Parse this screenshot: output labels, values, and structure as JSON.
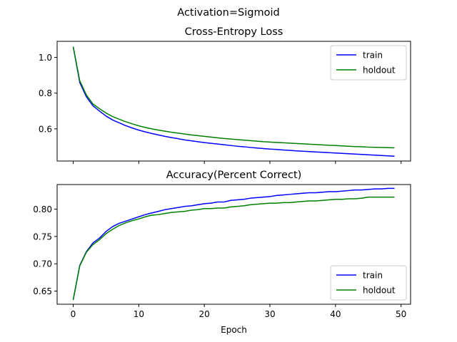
{
  "figure": {
    "suptitle": "Activation=Sigmoid"
  },
  "chart_data": [
    {
      "type": "line",
      "title": "Cross-Entropy Loss",
      "xlabel": "",
      "ylabel": "",
      "xlim": [
        -2.45,
        51.45
      ],
      "ylim": [
        0.42,
        1.09
      ],
      "xticks": [
        0,
        10,
        20,
        30,
        40,
        50
      ],
      "xtick_labels_visible": false,
      "yticks": [
        0.6,
        0.8,
        1.0
      ],
      "ytick_labels": [
        "0.6",
        "0.8",
        "1.0"
      ],
      "legend": {
        "position": "top-right"
      },
      "grid": false,
      "x": [
        0,
        1,
        2,
        3,
        4,
        5,
        6,
        7,
        8,
        9,
        10,
        11,
        12,
        13,
        14,
        15,
        16,
        17,
        18,
        19,
        20,
        21,
        22,
        23,
        24,
        25,
        26,
        27,
        28,
        29,
        30,
        31,
        32,
        33,
        34,
        35,
        36,
        37,
        38,
        39,
        40,
        41,
        42,
        43,
        44,
        45,
        46,
        47,
        48,
        49
      ],
      "series": [
        {
          "name": "train",
          "color": "#0000ff",
          "values": [
            1.06,
            0.86,
            0.78,
            0.73,
            0.7,
            0.672,
            0.65,
            0.634,
            0.618,
            0.605,
            0.593,
            0.583,
            0.574,
            0.566,
            0.558,
            0.551,
            0.545,
            0.538,
            0.533,
            0.528,
            0.523,
            0.519,
            0.515,
            0.511,
            0.507,
            0.503,
            0.5,
            0.496,
            0.493,
            0.49,
            0.487,
            0.485,
            0.482,
            0.48,
            0.477,
            0.475,
            0.473,
            0.471,
            0.469,
            0.467,
            0.465,
            0.463,
            0.461,
            0.459,
            0.457,
            0.455,
            0.453,
            0.451,
            0.449,
            0.447
          ]
        },
        {
          "name": "holdout",
          "color": "#008000",
          "values": [
            1.06,
            0.87,
            0.79,
            0.74,
            0.713,
            0.689,
            0.669,
            0.654,
            0.64,
            0.628,
            0.617,
            0.608,
            0.6,
            0.593,
            0.587,
            0.581,
            0.576,
            0.571,
            0.566,
            0.562,
            0.558,
            0.554,
            0.55,
            0.546,
            0.543,
            0.54,
            0.537,
            0.534,
            0.531,
            0.528,
            0.526,
            0.524,
            0.522,
            0.52,
            0.518,
            0.516,
            0.514,
            0.512,
            0.51,
            0.508,
            0.507,
            0.505,
            0.503,
            0.501,
            0.5,
            0.498,
            0.497,
            0.496,
            0.495,
            0.494
          ]
        }
      ]
    },
    {
      "type": "line",
      "title": "Accuracy(Percent Correct)",
      "xlabel": "Epoch",
      "ylabel": "",
      "xlim": [
        -2.45,
        51.45
      ],
      "ylim": [
        0.626,
        0.845
      ],
      "xticks": [
        0,
        10,
        20,
        30,
        40,
        50
      ],
      "xtick_labels": [
        "0",
        "10",
        "20",
        "30",
        "40",
        "50"
      ],
      "yticks": [
        0.65,
        0.7,
        0.75,
        0.8
      ],
      "ytick_labels": [
        "0.65",
        "0.70",
        "0.75",
        "0.80"
      ],
      "legend": {
        "position": "bottom-right"
      },
      "grid": false,
      "x": [
        0,
        1,
        2,
        3,
        4,
        5,
        6,
        7,
        8,
        9,
        10,
        11,
        12,
        13,
        14,
        15,
        16,
        17,
        18,
        19,
        20,
        21,
        22,
        23,
        24,
        25,
        26,
        27,
        28,
        29,
        30,
        31,
        32,
        33,
        34,
        35,
        36,
        37,
        38,
        39,
        40,
        41,
        42,
        43,
        44,
        45,
        46,
        47,
        48,
        49
      ],
      "series": [
        {
          "name": "train",
          "color": "#0000ff",
          "values": [
            0.634,
            0.697,
            0.722,
            0.738,
            0.747,
            0.759,
            0.768,
            0.774,
            0.778,
            0.782,
            0.786,
            0.79,
            0.793,
            0.796,
            0.799,
            0.801,
            0.803,
            0.805,
            0.806,
            0.808,
            0.81,
            0.811,
            0.813,
            0.813,
            0.816,
            0.817,
            0.818,
            0.82,
            0.821,
            0.822,
            0.823,
            0.825,
            0.826,
            0.827,
            0.828,
            0.829,
            0.83,
            0.83,
            0.831,
            0.832,
            0.832,
            0.833,
            0.834,
            0.835,
            0.835,
            0.836,
            0.837,
            0.837,
            0.838,
            0.838
          ]
        },
        {
          "name": "holdout",
          "color": "#008000",
          "values": [
            0.634,
            0.696,
            0.721,
            0.735,
            0.744,
            0.755,
            0.763,
            0.77,
            0.775,
            0.779,
            0.782,
            0.786,
            0.789,
            0.79,
            0.792,
            0.794,
            0.795,
            0.796,
            0.798,
            0.799,
            0.801,
            0.801,
            0.802,
            0.802,
            0.804,
            0.805,
            0.806,
            0.808,
            0.809,
            0.81,
            0.811,
            0.811,
            0.812,
            0.812,
            0.813,
            0.814,
            0.815,
            0.815,
            0.816,
            0.817,
            0.818,
            0.818,
            0.819,
            0.819,
            0.82,
            0.822,
            0.822,
            0.822,
            0.822,
            0.822
          ]
        }
      ]
    }
  ]
}
